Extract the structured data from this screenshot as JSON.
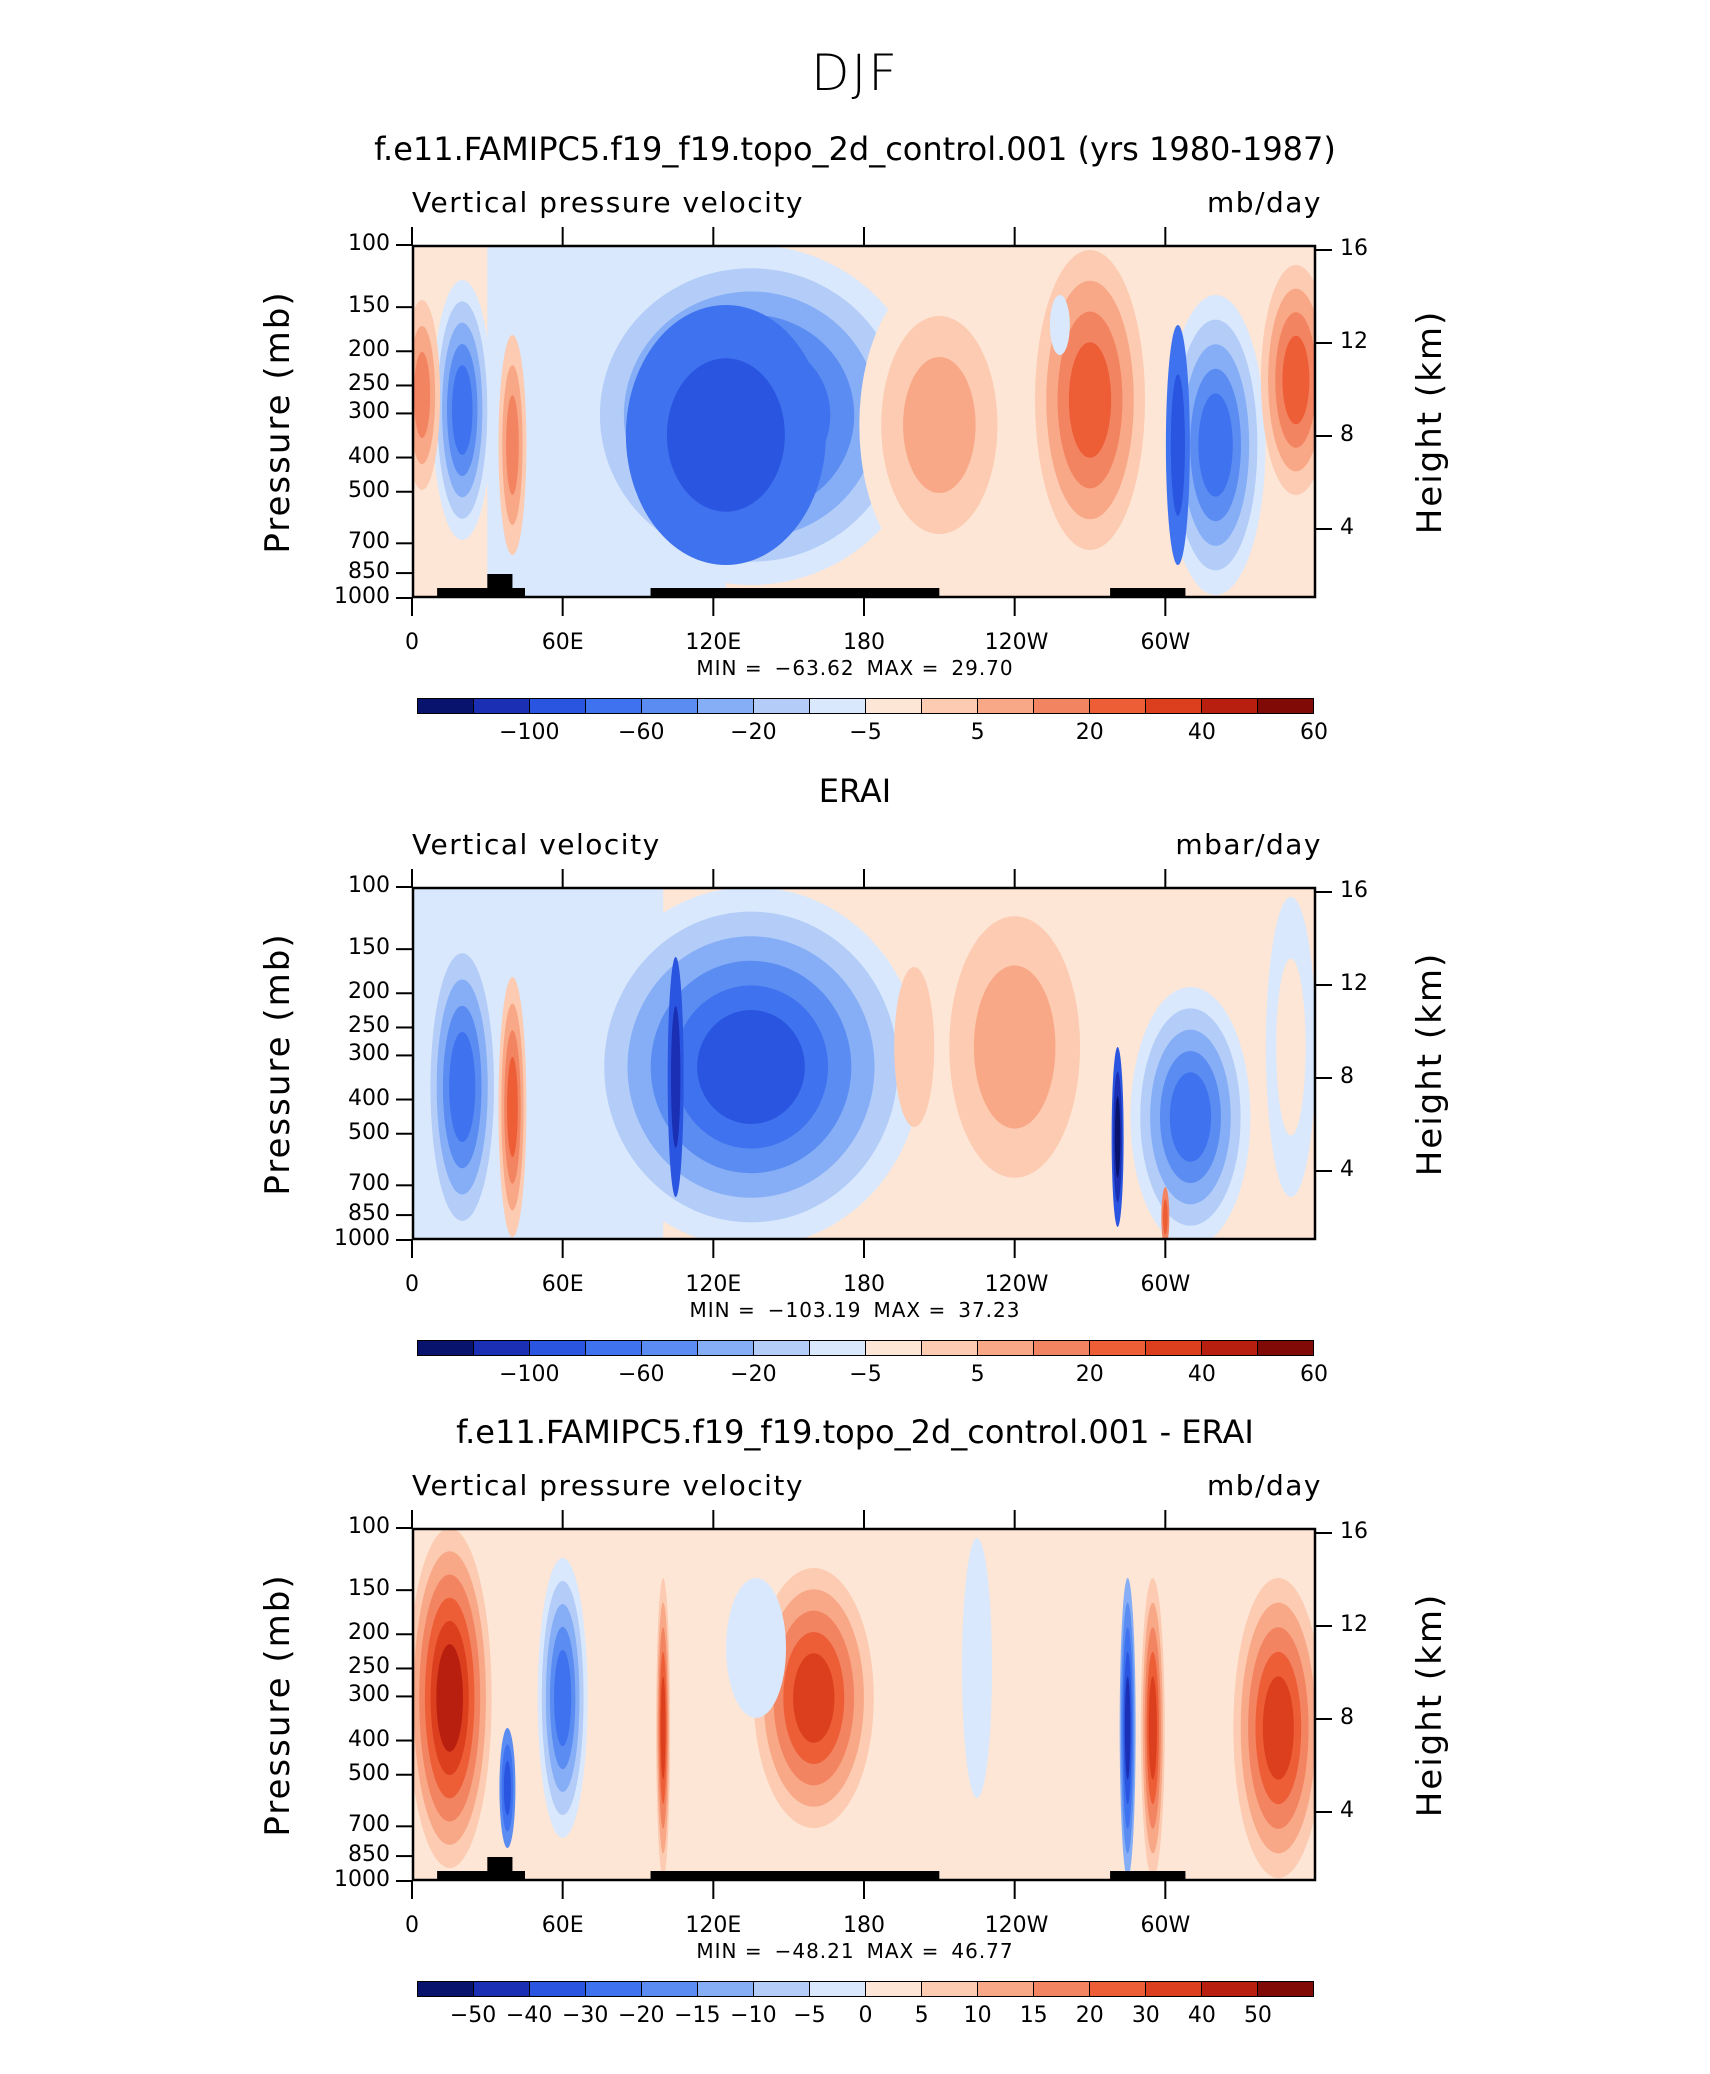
{
  "figure": {
    "title": "DJF"
  },
  "chart_data": [
    {
      "type": "heatmap",
      "panel_title": "f.e11.FAMIPC5.f19_f19.topo_2d_control.001 (yrs 1980-1987)",
      "variable": "Vertical pressure velocity",
      "units": "mb/day",
      "ylabel": "Pressure (mb)",
      "ylabel_right": "Height (km)",
      "x_ticks": [
        "0",
        "60E",
        "120E",
        "180",
        "120W",
        "60W"
      ],
      "y_ticks": [
        "100",
        "150",
        "200",
        "250",
        "300",
        "400",
        "500",
        "700",
        "850",
        "1000"
      ],
      "y_ticks_right": [
        "16",
        "12",
        "8",
        "4"
      ],
      "min_label": "MIN =",
      "min": "−63.62",
      "max_label": "MAX =",
      "max": "29.70",
      "colorbar_labels": [
        "−100",
        "−60",
        "−20",
        "−5",
        "5",
        "20",
        "40",
        "60"
      ]
    },
    {
      "type": "heatmap",
      "panel_title": "ERAI",
      "variable": "Vertical velocity",
      "units": "mbar/day",
      "ylabel": "Pressure (mb)",
      "ylabel_right": "Height (km)",
      "x_ticks": [
        "0",
        "60E",
        "120E",
        "180",
        "120W",
        "60W"
      ],
      "y_ticks": [
        "100",
        "150",
        "200",
        "250",
        "300",
        "400",
        "500",
        "700",
        "850",
        "1000"
      ],
      "y_ticks_right": [
        "16",
        "12",
        "8",
        "4"
      ],
      "min_label": "MIN =",
      "min": "−103.19",
      "max_label": "MAX =",
      "max": "37.23",
      "colorbar_labels": [
        "−100",
        "−60",
        "−20",
        "−5",
        "5",
        "20",
        "40",
        "60"
      ]
    },
    {
      "type": "heatmap",
      "panel_title": "f.e11.FAMIPC5.f19_f19.topo_2d_control.001 - ERAI",
      "variable": "Vertical pressure velocity",
      "units": "mb/day",
      "ylabel": "Pressure (mb)",
      "ylabel_right": "Height (km)",
      "x_ticks": [
        "0",
        "60E",
        "120E",
        "180",
        "120W",
        "60W"
      ],
      "y_ticks": [
        "100",
        "150",
        "200",
        "250",
        "300",
        "400",
        "500",
        "700",
        "850",
        "1000"
      ],
      "y_ticks_right": [
        "16",
        "12",
        "8",
        "4"
      ],
      "min_label": "MIN =",
      "min": "−48.21",
      "max_label": "MAX =",
      "max": "46.77",
      "colorbar_labels": [
        "−50",
        "−40",
        "−30",
        "−20",
        "−15",
        "−10",
        "−5",
        "0",
        "5",
        "10",
        "15",
        "20",
        "30",
        "40",
        "50"
      ]
    }
  ],
  "colormap": [
    "#08136e",
    "#1a2fb4",
    "#2a55e0",
    "#3f72ef",
    "#5b8cf2",
    "#86aef6",
    "#b3cdf8",
    "#d9e8fc",
    "#fde6d6",
    "#fccbb1",
    "#f8a887",
    "#f38461",
    "#ed5e37",
    "#db3f1e",
    "#b81f0f",
    "#800a05"
  ]
}
